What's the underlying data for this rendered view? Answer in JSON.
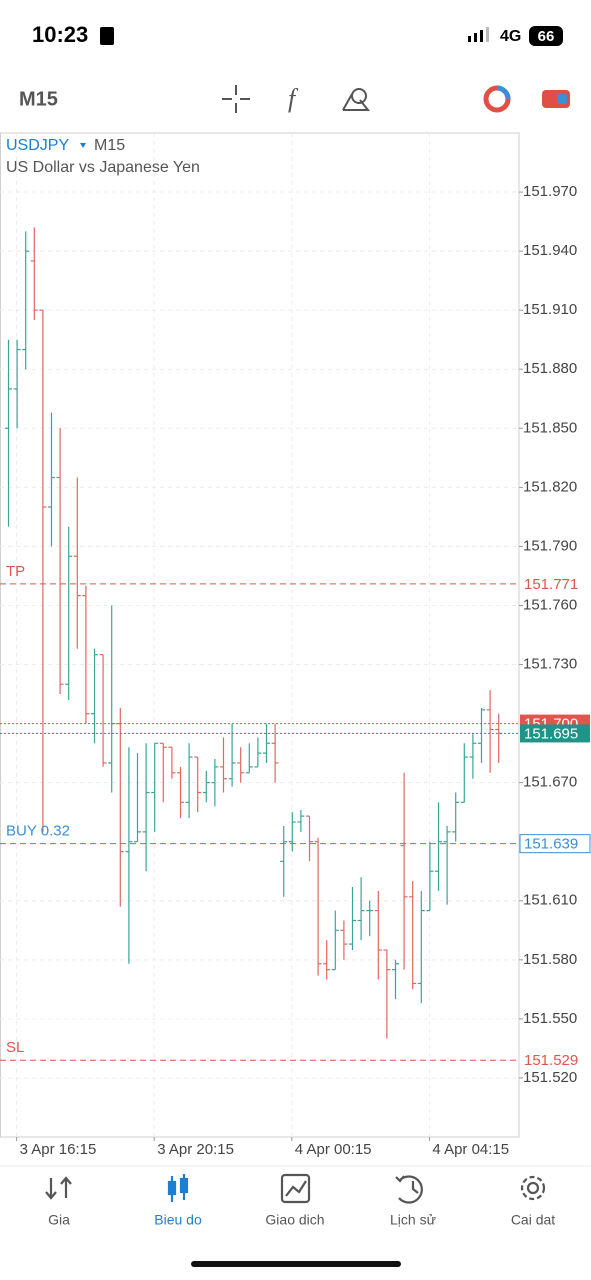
{
  "status": {
    "time": "10:23",
    "network": "4G",
    "battery": "66"
  },
  "toolbar": {
    "timeframe": "M15"
  },
  "chart": {
    "type": "ohlc",
    "symbol": "USDJPY",
    "timeframe": "M15",
    "description": "US Dollar vs Japanese Yen",
    "up_color": "#3aa597",
    "down_color": "#e2675f",
    "grid": true,
    "ylim": [
      151.49,
      152.0
    ],
    "yticks": [
      {
        "value": 151.97,
        "label": "151.970"
      },
      {
        "value": 151.94,
        "label": "151.940"
      },
      {
        "value": 151.91,
        "label": "151.910"
      },
      {
        "value": 151.88,
        "label": "151.880"
      },
      {
        "value": 151.85,
        "label": "151.850"
      },
      {
        "value": 151.82,
        "label": "151.820"
      },
      {
        "value": 151.79,
        "label": "151.790"
      },
      {
        "value": 151.76,
        "label": "151.760"
      },
      {
        "value": 151.73,
        "label": "151.730"
      },
      {
        "value": 151.67,
        "label": "151.670"
      },
      {
        "value": 151.61,
        "label": "151.610"
      },
      {
        "value": 151.58,
        "label": "151.580"
      },
      {
        "value": 151.55,
        "label": "151.550"
      },
      {
        "value": 151.52,
        "label": "151.520"
      }
    ],
    "xticks": [
      {
        "value": 1,
        "label": "3 Apr 16:15"
      },
      {
        "value": 17,
        "label": "3 Apr 20:15"
      },
      {
        "value": 33,
        "label": "4 Apr 00:15"
      },
      {
        "value": 49,
        "label": "4 Apr 04:15"
      }
    ],
    "open": [
      151.85,
      151.87,
      151.89,
      151.935,
      151.91,
      151.81,
      151.825,
      151.72,
      151.785,
      151.765,
      151.705,
      151.735,
      151.68,
      151.7,
      151.635,
      151.64,
      151.645,
      151.665,
      151.69,
      151.688,
      151.675,
      151.66,
      151.683,
      151.665,
      151.67,
      151.678,
      151.672,
      151.68,
      151.675,
      151.678,
      151.685,
      151.69,
      151.63,
      151.64,
      151.65,
      151.653,
      151.64,
      151.578,
      151.575,
      151.595,
      151.588,
      151.6,
      151.605,
      151.605,
      151.585,
      151.575,
      151.638,
      151.612,
      151.568,
      151.605,
      151.625,
      151.64,
      151.645,
      151.66,
      151.683,
      151.69,
      151.707,
      151.697
    ],
    "high": [
      151.895,
      151.895,
      151.95,
      151.952,
      151.91,
      151.858,
      151.85,
      151.8,
      151.825,
      151.77,
      151.738,
      151.735,
      151.76,
      151.708,
      151.688,
      151.685,
      151.69,
      151.69,
      151.69,
      151.688,
      151.678,
      151.69,
      151.683,
      151.676,
      151.682,
      151.693,
      151.7,
      151.688,
      151.69,
      151.693,
      151.7,
      151.7,
      151.648,
      151.655,
      151.656,
      151.653,
      151.642,
      151.59,
      151.605,
      151.6,
      151.617,
      151.622,
      151.61,
      151.615,
      151.585,
      151.58,
      151.675,
      151.62,
      151.615,
      151.64,
      151.66,
      151.648,
      151.665,
      151.69,
      151.695,
      151.708,
      151.717,
      151.705
    ],
    "low": [
      151.8,
      151.85,
      151.88,
      151.905,
      151.645,
      151.79,
      151.715,
      151.712,
      151.738,
      151.7,
      151.69,
      151.678,
      151.665,
      151.607,
      151.578,
      151.64,
      151.625,
      151.645,
      151.66,
      151.672,
      151.652,
      151.652,
      151.655,
      151.66,
      151.658,
      151.665,
      151.668,
      151.67,
      151.675,
      151.678,
      151.68,
      151.67,
      151.612,
      151.635,
      151.645,
      151.63,
      151.572,
      151.57,
      151.575,
      151.58,
      151.585,
      151.59,
      151.592,
      151.57,
      151.54,
      151.56,
      151.575,
      151.565,
      151.558,
      151.605,
      151.615,
      151.608,
      151.64,
      151.66,
      151.672,
      151.68,
      151.675,
      151.68
    ],
    "close": [
      151.87,
      151.89,
      151.94,
      151.91,
      151.81,
      151.825,
      151.72,
      151.785,
      151.765,
      151.705,
      151.735,
      151.68,
      151.7,
      151.635,
      151.64,
      151.645,
      151.665,
      151.69,
      151.688,
      151.675,
      151.66,
      151.683,
      151.665,
      151.67,
      151.678,
      151.672,
      151.68,
      151.675,
      151.678,
      151.685,
      151.69,
      151.68,
      151.64,
      151.65,
      151.653,
      151.64,
      151.578,
      151.575,
      151.595,
      151.588,
      151.6,
      151.605,
      151.605,
      151.585,
      151.575,
      151.578,
      151.612,
      151.568,
      151.605,
      151.625,
      151.64,
      151.645,
      151.66,
      151.683,
      151.69,
      151.707,
      151.697,
      151.695
    ],
    "levels": [
      {
        "name": "TP",
        "value": 151.771,
        "label": "151.771",
        "color": "#e0554c",
        "style": "dashed",
        "box": "outline"
      },
      {
        "value": 151.7,
        "label": "151.700",
        "color": "#e0554c",
        "style": "dotted",
        "box": "fill"
      },
      {
        "value": 151.695,
        "label": "151.695",
        "color": "#1f9488",
        "style": "dotted",
        "box": "fill"
      },
      {
        "name": "BUY 0.32",
        "value": 151.639,
        "label": "151.639",
        "color": "#3a8fd6",
        "style": "dashed",
        "box": "border"
      },
      {
        "name": "SL",
        "value": 151.529,
        "label": "151.529",
        "color": "#e0554c",
        "style": "dashed",
        "box": "outline"
      }
    ]
  },
  "nav": [
    "Gia",
    "Bieu do",
    "Giao dich",
    "Lịch sử",
    "Cai dat"
  ]
}
